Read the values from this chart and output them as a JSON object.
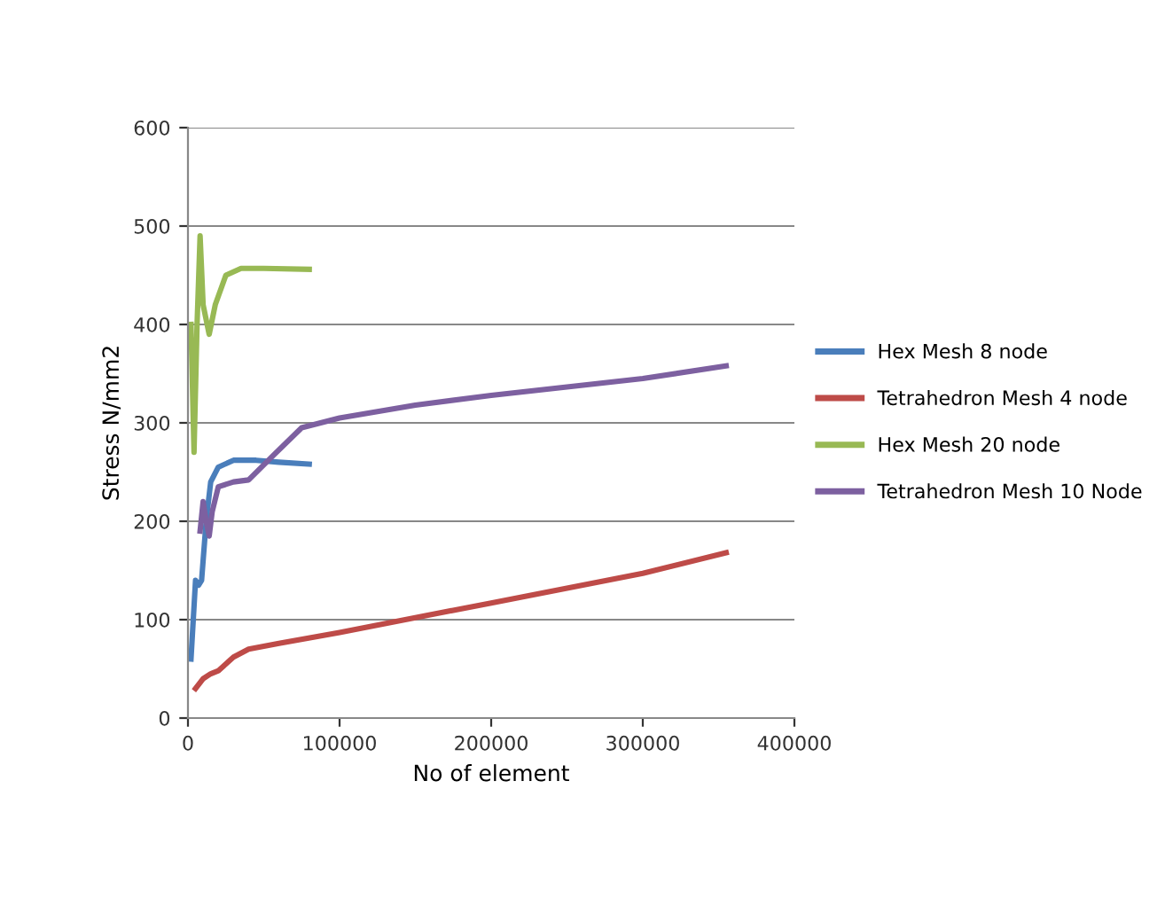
{
  "chart_data": {
    "type": "line",
    "xlabel": "No of element",
    "ylabel": "Stress N/mm2",
    "xlim": [
      0,
      400000
    ],
    "xticks": [
      0,
      100000,
      200000,
      300000,
      400000
    ],
    "ylim": [
      0,
      600
    ],
    "yticks": [
      0,
      100,
      200,
      300,
      400,
      500,
      600
    ],
    "grid": "y",
    "legend": "right",
    "marker": "none",
    "series": [
      {
        "name": "Hex Mesh 8 node",
        "color": "#4a7ebb",
        "x": [
          2000,
          5000,
          7000,
          9000,
          12000,
          15000,
          20000,
          30000,
          45000,
          60000,
          80000
        ],
        "values": [
          60,
          140,
          135,
          140,
          200,
          240,
          255,
          262,
          262,
          260,
          258
        ]
      },
      {
        "name": "Tetrahedron Mesh 4 node",
        "color": "#be4b48",
        "x": [
          5000,
          10000,
          15000,
          20000,
          30000,
          40000,
          60000,
          100000,
          200000,
          300000,
          355000
        ],
        "values": [
          30,
          40,
          45,
          48,
          62,
          70,
          76,
          87,
          117,
          147,
          168
        ]
      },
      {
        "name": "Hex Mesh 20 node",
        "color": "#98b954",
        "x": [
          2000,
          4000,
          6000,
          8000,
          10000,
          14000,
          18000,
          25000,
          35000,
          50000,
          80000
        ],
        "values": [
          400,
          270,
          400,
          490,
          420,
          390,
          420,
          450,
          457,
          457,
          456
        ]
      },
      {
        "name": "Tetrahedron Mesh 10 Node",
        "color": "#7d60a0",
        "x": [
          8000,
          10000,
          12000,
          14000,
          16000,
          20000,
          30000,
          40000,
          55000,
          75000,
          100000,
          150000,
          200000,
          300000,
          355000
        ],
        "values": [
          190,
          220,
          200,
          185,
          210,
          235,
          240,
          242,
          265,
          295,
          305,
          318,
          328,
          345,
          358
        ]
      }
    ]
  }
}
